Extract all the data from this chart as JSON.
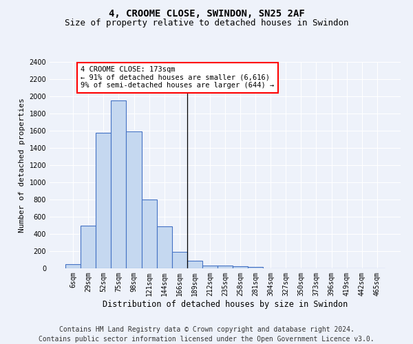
{
  "title": "4, CROOME CLOSE, SWINDON, SN25 2AF",
  "subtitle": "Size of property relative to detached houses in Swindon",
  "xlabel": "Distribution of detached houses by size in Swindon",
  "ylabel": "Number of detached properties",
  "categories": [
    "6sqm",
    "29sqm",
    "52sqm",
    "75sqm",
    "98sqm",
    "121sqm",
    "144sqm",
    "166sqm",
    "189sqm",
    "212sqm",
    "235sqm",
    "258sqm",
    "281sqm",
    "304sqm",
    "327sqm",
    "350sqm",
    "373sqm",
    "396sqm",
    "419sqm",
    "442sqm",
    "465sqm"
  ],
  "values": [
    50,
    500,
    1580,
    1950,
    1590,
    800,
    490,
    195,
    90,
    35,
    30,
    25,
    20,
    0,
    0,
    0,
    0,
    0,
    0,
    0,
    0
  ],
  "bar_color": "#c5d8f0",
  "bar_edge_color": "#4472c4",
  "ylim": [
    0,
    2400
  ],
  "yticks": [
    0,
    200,
    400,
    600,
    800,
    1000,
    1200,
    1400,
    1600,
    1800,
    2000,
    2200,
    2400
  ],
  "vline_x": 7.5,
  "annotation_text_line1": "4 CROOME CLOSE: 173sqm",
  "annotation_text_line2": "← 91% of detached houses are smaller (6,616)",
  "annotation_text_line3": "9% of semi-detached houses are larger (644) →",
  "footer_line1": "Contains HM Land Registry data © Crown copyright and database right 2024.",
  "footer_line2": "Contains public sector information licensed under the Open Government Licence v3.0.",
  "background_color": "#eef2fa",
  "grid_color": "#ffffff",
  "title_fontsize": 10,
  "subtitle_fontsize": 9,
  "axis_label_fontsize": 8.5,
  "tick_fontsize": 7,
  "footer_fontsize": 7,
  "ylabel_fontsize": 8
}
